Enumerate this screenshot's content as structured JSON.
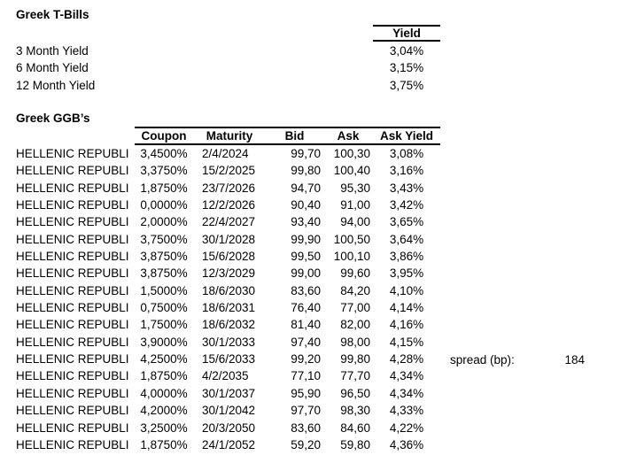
{
  "t_bills": {
    "title": "Greek T-Bills",
    "yield_header": "Yield",
    "rows": [
      {
        "label": "3 Month Yield",
        "value": "3,04%"
      },
      {
        "label": "6 Month Yield",
        "value": "3,15%"
      },
      {
        "label": "12 Month Yield",
        "value": "3,75%"
      }
    ]
  },
  "ggbs": {
    "title": "Greek GGB’s",
    "columns": [
      "Coupon",
      "Maturity",
      "Bid",
      "Ask",
      "Ask Yield"
    ],
    "rows": [
      {
        "name": "HELLENIC REPUBLI",
        "coupon": "3,4500%",
        "maturity": "2/4/2024",
        "bid": "99,70",
        "ask": "100,30",
        "ask_yield": "3,08%"
      },
      {
        "name": "HELLENIC REPUBLI",
        "coupon": "3,3750%",
        "maturity": "15/2/2025",
        "bid": "99,80",
        "ask": "100,40",
        "ask_yield": "3,16%"
      },
      {
        "name": "HELLENIC REPUBLI",
        "coupon": "1,8750%",
        "maturity": "23/7/2026",
        "bid": "94,70",
        "ask": "95,30",
        "ask_yield": "3,43%"
      },
      {
        "name": "HELLENIC REPUBLI",
        "coupon": "0,0000%",
        "maturity": "12/2/2026",
        "bid": "90,40",
        "ask": "91,00",
        "ask_yield": "3,42%"
      },
      {
        "name": "HELLENIC REPUBLI",
        "coupon": "2,0000%",
        "maturity": "22/4/2027",
        "bid": "93,40",
        "ask": "94,00",
        "ask_yield": "3,65%"
      },
      {
        "name": "HELLENIC REPUBLI",
        "coupon": "3,7500%",
        "maturity": "30/1/2028",
        "bid": "99,90",
        "ask": "100,50",
        "ask_yield": "3,64%"
      },
      {
        "name": "HELLENIC REPUBLI",
        "coupon": "3,8750%",
        "maturity": "15/6/2028",
        "bid": "99,50",
        "ask": "100,10",
        "ask_yield": "3,86%"
      },
      {
        "name": "HELLENIC REPUBLI",
        "coupon": "3,8750%",
        "maturity": "12/3/2029",
        "bid": "99,00",
        "ask": "99,60",
        "ask_yield": "3,95%"
      },
      {
        "name": "HELLENIC REPUBLI",
        "coupon": "1,5000%",
        "maturity": "18/6/2030",
        "bid": "83,60",
        "ask": "84,20",
        "ask_yield": "4,10%"
      },
      {
        "name": "HELLENIC REPUBLI",
        "coupon": "0,7500%",
        "maturity": "18/6/2031",
        "bid": "76,40",
        "ask": "77,00",
        "ask_yield": "4,14%"
      },
      {
        "name": "HELLENIC REPUBLI",
        "coupon": "1,7500%",
        "maturity": "18/6/2032",
        "bid": "81,40",
        "ask": "82,00",
        "ask_yield": "4,16%"
      },
      {
        "name": "HELLENIC REPUBLI",
        "coupon": "3,9000%",
        "maturity": "30/1/2033",
        "bid": "97,40",
        "ask": "98,00",
        "ask_yield": "4,15%"
      },
      {
        "name": "HELLENIC REPUBLI",
        "coupon": "4,2500%",
        "maturity": "15/6/2033",
        "bid": "99,20",
        "ask": "99,80",
        "ask_yield": "4,28%"
      },
      {
        "name": "HELLENIC REPUBLI",
        "coupon": "1,8750%",
        "maturity": "4/2/2035",
        "bid": "77,10",
        "ask": "77,70",
        "ask_yield": "4,34%"
      },
      {
        "name": "HELLENIC REPUBLI",
        "coupon": "4,0000%",
        "maturity": "30/1/2037",
        "bid": "95,90",
        "ask": "96,50",
        "ask_yield": "4,34%"
      },
      {
        "name": "HELLENIC REPUBLI",
        "coupon": "4,2000%",
        "maturity": "30/1/2042",
        "bid": "97,70",
        "ask": "98,30",
        "ask_yield": "4,33%"
      },
      {
        "name": "HELLENIC REPUBLI",
        "coupon": "3,2500%",
        "maturity": "20/3/2050",
        "bid": "83,60",
        "ask": "84,60",
        "ask_yield": "4,22%"
      },
      {
        "name": "HELLENIC REPUBLI",
        "coupon": "1,8750%",
        "maturity": "24/1/2052",
        "bid": "59,20",
        "ask": "59,80",
        "ask_yield": "4,36%"
      }
    ]
  },
  "spread": {
    "label": "spread (bp):",
    "value": "184"
  }
}
